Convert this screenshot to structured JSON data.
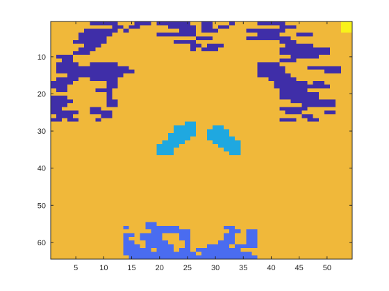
{
  "chart_data": {
    "type": "heatmap",
    "title": "",
    "xlabel": "",
    "ylabel": "",
    "x_range": [
      0.5,
      54.5
    ],
    "y_range": [
      0.5,
      64.5
    ],
    "y_direction": "reversed",
    "x_ticks": [
      5,
      10,
      15,
      20,
      25,
      30,
      35,
      40,
      45,
      50
    ],
    "y_ticks": [
      10,
      20,
      30,
      40,
      50,
      60
    ],
    "background_class": 2,
    "colors": {
      "0": "#3f2ea8",
      "1": "#4a6cf0",
      "2": "#f0b83a",
      "3": "#1fa8e0",
      "4": "#f8f21a"
    },
    "regions": [
      {
        "class": 4,
        "cells": [
          [
            53,
            1,
            54,
            3
          ]
        ]
      },
      {
        "class": 0,
        "cells": [
          [
            8,
            1,
            12,
            1
          ],
          [
            16,
            1,
            18,
            1
          ],
          [
            20,
            1,
            21,
            1
          ],
          [
            12,
            2,
            13,
            2
          ],
          [
            15,
            2,
            16,
            2
          ],
          [
            7,
            3,
            12,
            3
          ],
          [
            14,
            3,
            14,
            3
          ],
          [
            6,
            4,
            11,
            4
          ],
          [
            6,
            5,
            10,
            5
          ],
          [
            5,
            6,
            10,
            6
          ],
          [
            7,
            7,
            9,
            7
          ],
          [
            6,
            8,
            8,
            8
          ],
          [
            5,
            9,
            7,
            9
          ],
          [
            2,
            10,
            4,
            10
          ],
          [
            3,
            11,
            4,
            11
          ],
          [
            2,
            12,
            5,
            12
          ],
          [
            8,
            12,
            12,
            12
          ],
          [
            2,
            13,
            14,
            13
          ],
          [
            2,
            14,
            15,
            14
          ],
          [
            4,
            15,
            13,
            15
          ],
          [
            2,
            16,
            5,
            16
          ],
          [
            8,
            16,
            12,
            16
          ],
          [
            1,
            17,
            4,
            17
          ],
          [
            11,
            17,
            12,
            17
          ],
          [
            1,
            18,
            3,
            18
          ],
          [
            11,
            18,
            12,
            18
          ],
          [
            2,
            19,
            3,
            19
          ],
          [
            9,
            19,
            11,
            19
          ],
          [
            11,
            20,
            11,
            20
          ],
          [
            1,
            21,
            3,
            21
          ],
          [
            11,
            21,
            11,
            21
          ],
          [
            1,
            22,
            4,
            22
          ],
          [
            11,
            22,
            12,
            22
          ],
          [
            1,
            23,
            3,
            23
          ],
          [
            11,
            23,
            12,
            23
          ],
          [
            1,
            24,
            2,
            24
          ],
          [
            8,
            24,
            9,
            24
          ],
          [
            1,
            25,
            5,
            25
          ],
          [
            8,
            25,
            11,
            25
          ],
          [
            2,
            26,
            4,
            26
          ],
          [
            10,
            26,
            11,
            26
          ],
          [
            1,
            27,
            2,
            27
          ],
          [
            4,
            27,
            5,
            27
          ],
          [
            9,
            27,
            9,
            27
          ]
        ]
      },
      {
        "class": 0,
        "cells": [
          [
            21,
            1,
            25,
            1
          ],
          [
            28,
            1,
            29,
            1
          ],
          [
            33,
            1,
            33,
            1
          ],
          [
            22,
            2,
            26,
            2
          ],
          [
            28,
            2,
            29,
            2
          ],
          [
            31,
            2,
            32,
            2
          ],
          [
            24,
            3,
            26,
            3
          ],
          [
            28,
            3,
            30,
            3
          ],
          [
            20,
            4,
            26,
            4
          ],
          [
            27,
            5,
            29,
            5
          ],
          [
            23,
            6,
            26,
            6
          ],
          [
            26,
            7,
            27,
            7
          ],
          [
            29,
            7,
            31,
            7
          ],
          [
            26,
            8,
            26,
            8
          ],
          [
            28,
            8,
            30,
            8
          ]
        ]
      },
      {
        "class": 0,
        "cells": [
          [
            38,
            1,
            42,
            1
          ],
          [
            42,
            2,
            44,
            2
          ],
          [
            36,
            3,
            42,
            3
          ],
          [
            38,
            4,
            41,
            4
          ],
          [
            36,
            5,
            43,
            5
          ],
          [
            42,
            6,
            44,
            6
          ],
          [
            45,
            4,
            47,
            4
          ],
          [
            43,
            7,
            47,
            7
          ],
          [
            42,
            8,
            50,
            8
          ],
          [
            42,
            9,
            50,
            9
          ],
          [
            44,
            10,
            48,
            10
          ],
          [
            42,
            11,
            42,
            11
          ],
          [
            38,
            12,
            41,
            12
          ],
          [
            38,
            13,
            42,
            13
          ],
          [
            38,
            14,
            42,
            14
          ],
          [
            38,
            15,
            43,
            15
          ],
          [
            40,
            16,
            44,
            16
          ],
          [
            41,
            17,
            46,
            17
          ],
          [
            41,
            18,
            50,
            18
          ],
          [
            42,
            19,
            46,
            19
          ],
          [
            42,
            20,
            48,
            20
          ],
          [
            42,
            21,
            48,
            21
          ],
          [
            44,
            22,
            51,
            22
          ],
          [
            46,
            23,
            51,
            23
          ],
          [
            42,
            24,
            46,
            24
          ],
          [
            43,
            25,
            45,
            25
          ],
          [
            46,
            26,
            47,
            26
          ],
          [
            50,
            25,
            51,
            25
          ],
          [
            42,
            27,
            44,
            27
          ],
          [
            47,
            27,
            48,
            27
          ],
          [
            50,
            13,
            52,
            14
          ],
          [
            47,
            13,
            49,
            13
          ],
          [
            48,
            17,
            49,
            17
          ],
          [
            43,
            11,
            44,
            11
          ]
        ]
      },
      {
        "class": 3,
        "cells": [
          [
            25,
            28,
            26,
            28
          ],
          [
            23,
            29,
            26,
            29
          ],
          [
            23,
            30,
            26,
            30
          ],
          [
            22,
            31,
            26,
            31
          ],
          [
            22,
            32,
            25,
            32
          ],
          [
            21,
            33,
            24,
            33
          ],
          [
            20,
            34,
            23,
            34
          ],
          [
            20,
            35,
            22,
            35
          ],
          [
            20,
            36,
            22,
            36
          ]
        ]
      },
      {
        "class": 3,
        "cells": [
          [
            30,
            29,
            31,
            29
          ],
          [
            29,
            30,
            32,
            30
          ],
          [
            29,
            31,
            32,
            31
          ],
          [
            29,
            32,
            33,
            32
          ],
          [
            30,
            33,
            34,
            33
          ],
          [
            31,
            34,
            34,
            34
          ],
          [
            32,
            35,
            34,
            35
          ],
          [
            33,
            36,
            34,
            36
          ]
        ]
      },
      {
        "class": 1,
        "cells": [
          [
            14,
            56,
            14,
            56
          ],
          [
            18,
            55,
            19,
            55
          ],
          [
            18,
            56,
            23,
            56
          ],
          [
            19,
            57,
            25,
            57
          ],
          [
            14,
            58,
            15,
            58
          ],
          [
            17,
            58,
            20,
            58
          ],
          [
            24,
            58,
            25,
            58
          ],
          [
            14,
            59,
            14,
            59
          ],
          [
            17,
            59,
            20,
            59
          ],
          [
            24,
            59,
            25,
            59
          ],
          [
            14,
            60,
            15,
            60
          ],
          [
            18,
            60,
            21,
            60
          ],
          [
            25,
            60,
            25,
            60
          ],
          [
            14,
            61,
            16,
            61
          ],
          [
            18,
            61,
            22,
            61
          ],
          [
            25,
            61,
            25,
            61
          ],
          [
            14,
            62,
            18,
            62
          ],
          [
            20,
            62,
            22,
            62
          ],
          [
            24,
            62,
            25,
            62
          ],
          [
            14,
            63,
            26,
            63
          ],
          [
            15,
            64,
            26,
            64
          ]
        ]
      },
      {
        "class": 1,
        "cells": [
          [
            32,
            56,
            33,
            56
          ],
          [
            33,
            57,
            34,
            57
          ],
          [
            36,
            57,
            37,
            57
          ],
          [
            32,
            58,
            33,
            58
          ],
          [
            36,
            58,
            37,
            58
          ],
          [
            32,
            59,
            33,
            59
          ],
          [
            36,
            59,
            37,
            59
          ],
          [
            31,
            60,
            33,
            60
          ],
          [
            36,
            60,
            37,
            60
          ],
          [
            29,
            61,
            32,
            61
          ],
          [
            34,
            61,
            37,
            61
          ],
          [
            27,
            62,
            33,
            62
          ],
          [
            28,
            63,
            36,
            63
          ],
          [
            27,
            64,
            37,
            64
          ],
          [
            30,
            62,
            34,
            62
          ]
        ]
      }
    ]
  }
}
